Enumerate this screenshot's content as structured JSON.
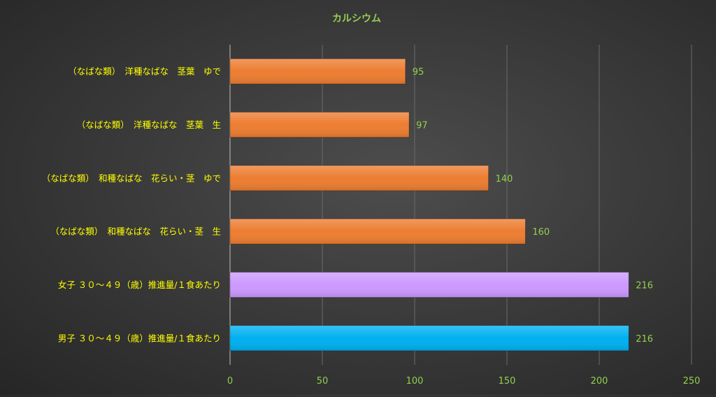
{
  "chart_data": {
    "type": "bar",
    "orientation": "horizontal",
    "title": "カルシウム",
    "categories": [
      "（なばな類）　洋種なばな　茎葉　ゆで",
      "（なばな類）　洋種なばな　茎葉　生",
      "（なばな類）　和種なばな　花らい・茎　ゆで",
      "（なばな類）　和種なばな　花らい・茎　生",
      "女子 ３０～４９（歳）推進量/１食あたり",
      "男子 ３０～４９（歳）推進量/１食あたり"
    ],
    "values": [
      95,
      97,
      140,
      160,
      216,
      216
    ],
    "data_labels": [
      "95",
      "97",
      "140",
      "160",
      "216",
      "216"
    ],
    "bar_colors": [
      "#ED7D31",
      "#ED7D31",
      "#ED7D31",
      "#ED7D31",
      "#CC99FF",
      "#00B0F0"
    ],
    "xlim": [
      0,
      250
    ],
    "x_ticks": [
      0,
      50,
      100,
      150,
      200,
      250
    ],
    "x_tick_labels": [
      "0",
      "50",
      "100",
      "150",
      "200",
      "250"
    ],
    "grid": true,
    "legend": "none",
    "colors": {
      "title": "#92D050",
      "category_labels": "#FFFF00",
      "tick_labels": "#92D050",
      "data_labels": "#92D050",
      "gridlines": "#6a6a6a",
      "axis_line": "#bfbfbf"
    }
  }
}
